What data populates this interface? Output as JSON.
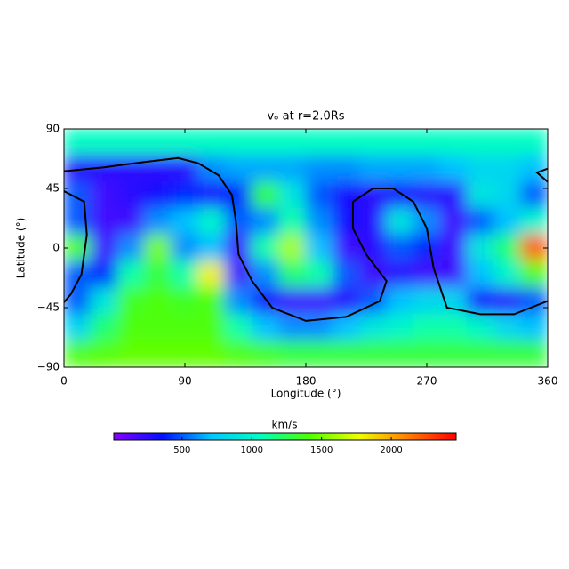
{
  "chart_data": {
    "type": "heatmap",
    "title": "vₒ at r=2.0Rs",
    "xlabel": "Longitude (°)",
    "ylabel": "Latitude (°)",
    "xlim": [
      0,
      360
    ],
    "ylim": [
      -90,
      90
    ],
    "xticks": [
      0,
      90,
      180,
      270,
      360
    ],
    "yticks": [
      90,
      45,
      0,
      {
        "value": -45,
        "label": "−45"
      },
      {
        "value": -90,
        "label": "−90"
      }
    ],
    "x": [
      10,
      30,
      50,
      70,
      90,
      110,
      130,
      150,
      170,
      190,
      210,
      230,
      250,
      270,
      290,
      310,
      330,
      350
    ],
    "y": [
      80,
      60,
      40,
      20,
      0,
      -20,
      -40,
      -60,
      -80
    ],
    "z": [
      [
        1050,
        1050,
        1050,
        1050,
        1050,
        1050,
        1050,
        1050,
        1050,
        1050,
        1050,
        1050,
        1050,
        1050,
        1050,
        1050,
        1050,
        1050
      ],
      [
        250,
        250,
        250,
        250,
        250,
        600,
        650,
        650,
        650,
        600,
        600,
        650,
        650,
        650,
        700,
        800,
        800,
        700
      ],
      [
        500,
        200,
        250,
        300,
        400,
        300,
        400,
        1300,
        900,
        500,
        300,
        250,
        300,
        250,
        250,
        900,
        800,
        500
      ],
      [
        500,
        200,
        200,
        600,
        700,
        1000,
        500,
        600,
        1100,
        600,
        300,
        250,
        900,
        600,
        200,
        500,
        700,
        1000
      ],
      [
        1400,
        200,
        600,
        1500,
        600,
        700,
        200,
        1100,
        1600,
        700,
        200,
        250,
        500,
        400,
        200,
        900,
        1200,
        2200
      ],
      [
        500,
        400,
        1100,
        1300,
        1100,
        1800,
        200,
        600,
        1200,
        1100,
        500,
        200,
        250,
        200,
        200,
        700,
        1000,
        1400
      ],
      [
        500,
        900,
        1350,
        1400,
        1350,
        1400,
        600,
        300,
        200,
        200,
        250,
        500,
        700,
        800,
        800,
        300,
        250,
        500
      ],
      [
        800,
        1200,
        1400,
        1400,
        1400,
        1400,
        1100,
        700,
        600,
        600,
        700,
        900,
        1000,
        1100,
        1100,
        1000,
        800,
        700
      ],
      [
        1400,
        1420,
        1450,
        1450,
        1450,
        1450,
        1400,
        1350,
        1300,
        1300,
        1300,
        1300,
        1300,
        1300,
        1300,
        1300,
        1300,
        1300
      ]
    ],
    "contour": {
      "x": [
        0,
        30,
        60,
        85,
        100,
        115,
        125,
        128,
        130,
        140,
        155,
        180,
        210,
        235,
        240,
        225,
        215,
        215,
        230,
        245,
        260,
        270,
        275,
        285,
        310,
        335,
        355,
        360,
        null,
        0,
        15,
        17,
        13,
        5,
        0,
        null,
        360,
        352,
        360
      ],
      "y": [
        58,
        61,
        65,
        68,
        64,
        55,
        40,
        20,
        -5,
        -25,
        -45,
        -55,
        -52,
        -40,
        -25,
        -5,
        15,
        35,
        45,
        45,
        35,
        15,
        -15,
        -45,
        -50,
        -50,
        -42,
        -40,
        null,
        43,
        35,
        10,
        -20,
        -35,
        -41,
        null,
        60,
        57,
        50
      ]
    },
    "colorbar_label": "km/s",
    "clim": [
      10,
      2465
    ],
    "cticks": [
      500,
      1000,
      1500,
      2000
    ],
    "colormap": [
      "#8a00ff",
      "#0010ff",
      "#00c8ff",
      "#00ffc0",
      "#50ff00",
      "#f0ff00",
      "#ff8000",
      "#ff0000"
    ]
  }
}
